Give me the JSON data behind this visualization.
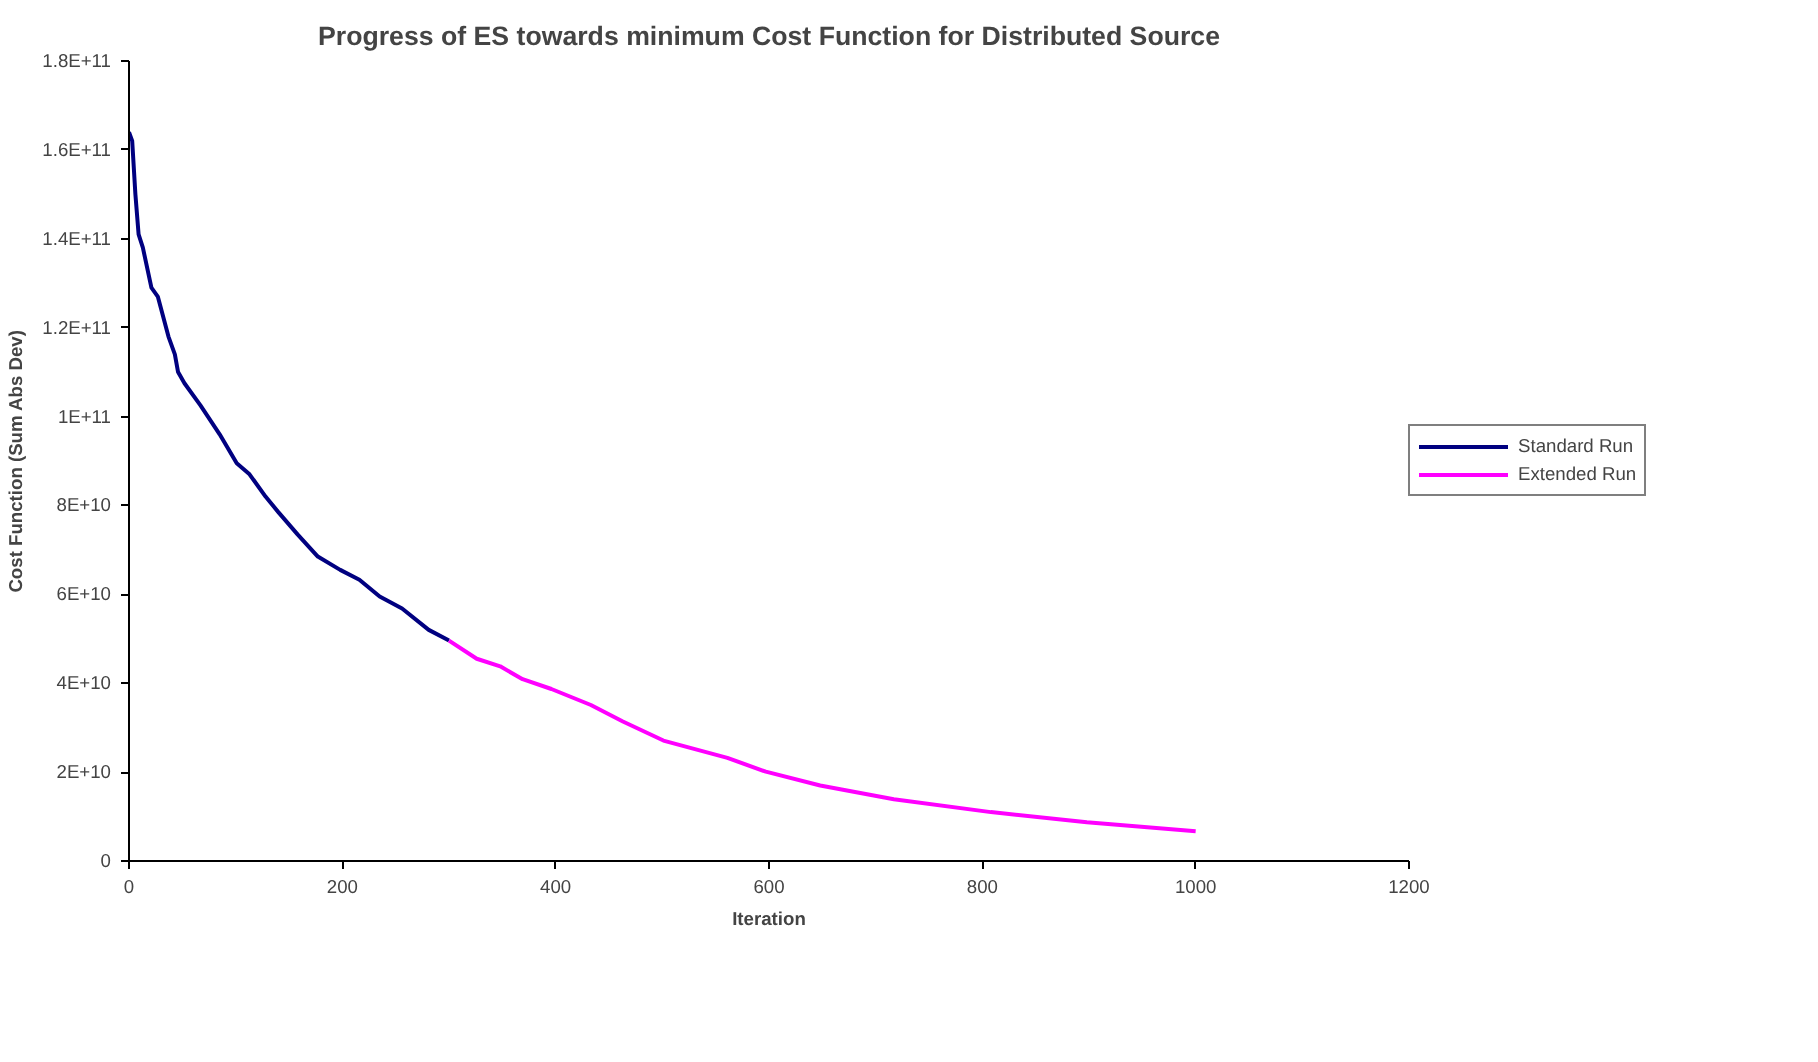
{
  "chart_data": {
    "type": "line",
    "title": "Progress of ES towards minimum Cost Function for Distributed Source",
    "xlabel": "Iteration",
    "ylabel": "Cost Function (Sum Abs Dev)",
    "xlim": [
      0,
      1200
    ],
    "xticks": [
      0,
      200,
      400,
      600,
      800,
      1000,
      1200
    ],
    "ylim": [
      0,
      180000000000
    ],
    "yticks": [
      0,
      {
        "value": 20000000000,
        "label": "2E+10"
      },
      {
        "value": 40000000000,
        "label": "4E+10"
      },
      {
        "value": 60000000000,
        "label": "6E+10"
      },
      {
        "value": 80000000000,
        "label": "8E+10"
      },
      {
        "value": 100000000000,
        "label": "1E+11"
      },
      {
        "value": 120000000000,
        "label": "1.2E+11"
      },
      {
        "value": 140000000000,
        "label": "1.4E+11"
      },
      {
        "value": 160000000000,
        "label": "1.6E+11"
      },
      {
        "value": 180000000000,
        "label": "1.8E+11"
      }
    ],
    "grid": false,
    "legend": "right",
    "marker": "none",
    "line_style": "solid",
    "series": [
      {
        "name": "Standard Run",
        "color": "#000080",
        "x": [
          0,
          3,
          6,
          9,
          13,
          21,
          27,
          37,
          43,
          46,
          52,
          67,
          85,
          101,
          113,
          128,
          140,
          158,
          177,
          198,
          216,
          235,
          256,
          281,
          300
        ],
        "values": [
          164000000000,
          162000000000,
          150000000000,
          141000000000,
          138000000000,
          129000000000,
          127000000000,
          118000000000,
          114000000000,
          110000000000,
          107500000000,
          102500000000,
          96000000000,
          89500000000,
          87000000000,
          82000000000,
          78500000000,
          73500000000,
          68500000000,
          65500000000,
          63300000000,
          59500000000,
          56800000000,
          52000000000,
          49600000000
        ]
      },
      {
        "name": "Extended Run",
        "color": "#ff00ff",
        "x": [
          300,
          326,
          348,
          369,
          396,
          433,
          463,
          501,
          561,
          597,
          648,
          717,
          808,
          898,
          1000
        ],
        "values": [
          49600000000,
          45500000000,
          43800000000,
          40900000000,
          38700000000,
          35100000000,
          31400000000,
          27100000000,
          23200000000,
          20100000000,
          17000000000,
          13900000000,
          11000000000,
          8700000000,
          6700000000
        ]
      }
    ]
  }
}
